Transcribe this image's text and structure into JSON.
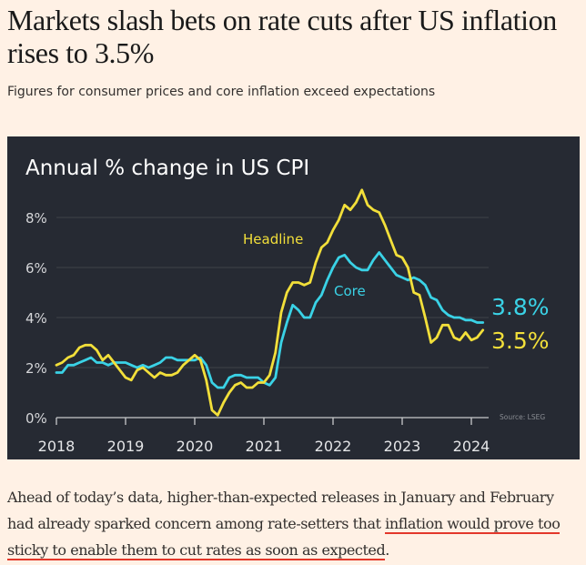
{
  "article": {
    "headline": "Markets slash bets on rate cuts after US inflation rises to 3.5%",
    "standfirst": "Figures for consumer prices and core inflation exceed expectations",
    "body_before_link": "Ahead of today’s data, higher-than-expected releases in January and February had already sparked concern among rate-setters that ",
    "body_link": "inflation would prove too sticky to enable them to cut rates as soon as expected",
    "body_after_link": "."
  },
  "colors": {
    "page_bg": "#fff1e5",
    "chart_bg": "#262a33",
    "headline_series": "#f2df3a",
    "core_series": "#3ad2e6",
    "link_underline": "#e3372a"
  },
  "chart_data": {
    "type": "line",
    "title": "Annual % change in US CPI",
    "source": "Source: LSEG",
    "xlabel": "",
    "ylabel": "",
    "x_start": "2018-01",
    "x_frequency": "monthly",
    "xlim": [
      2018.0,
      2024.25
    ],
    "ylim": [
      0,
      9
    ],
    "x_ticks": [
      2018,
      2019,
      2020,
      2021,
      2022,
      2023,
      2024
    ],
    "x_tick_labels": [
      "2018",
      "2019",
      "2020",
      "2021",
      "2022",
      "2023",
      "2024"
    ],
    "y_ticks": [
      0,
      2,
      4,
      6,
      8
    ],
    "y_tick_labels": [
      "0%",
      "2%",
      "4%",
      "6%",
      "8%"
    ],
    "grid": true,
    "series": [
      {
        "name": "Headline",
        "color": "#f2df3a",
        "end_label": "3.5%",
        "values": [
          2.1,
          2.2,
          2.4,
          2.5,
          2.8,
          2.9,
          2.9,
          2.7,
          2.3,
          2.5,
          2.2,
          1.9,
          1.6,
          1.5,
          1.9,
          2.0,
          1.8,
          1.6,
          1.8,
          1.7,
          1.7,
          1.8,
          2.1,
          2.3,
          2.5,
          2.3,
          1.5,
          0.3,
          0.1,
          0.6,
          1.0,
          1.3,
          1.4,
          1.2,
          1.2,
          1.4,
          1.4,
          1.7,
          2.6,
          4.2,
          5.0,
          5.4,
          5.4,
          5.3,
          5.4,
          6.2,
          6.8,
          7.0,
          7.5,
          7.9,
          8.5,
          8.3,
          8.6,
          9.1,
          8.5,
          8.3,
          8.2,
          7.7,
          7.1,
          6.5,
          6.4,
          6.0,
          5.0,
          4.9,
          4.0,
          3.0,
          3.2,
          3.7,
          3.7,
          3.2,
          3.1,
          3.4,
          3.1,
          3.2,
          3.5
        ]
      },
      {
        "name": "Core",
        "color": "#3ad2e6",
        "end_label": "3.8%",
        "values": [
          1.8,
          1.8,
          2.1,
          2.1,
          2.2,
          2.3,
          2.4,
          2.2,
          2.2,
          2.1,
          2.2,
          2.2,
          2.2,
          2.1,
          2.0,
          2.1,
          2.0,
          2.1,
          2.2,
          2.4,
          2.4,
          2.3,
          2.3,
          2.3,
          2.3,
          2.4,
          2.1,
          1.4,
          1.2,
          1.2,
          1.6,
          1.7,
          1.7,
          1.6,
          1.6,
          1.6,
          1.4,
          1.3,
          1.6,
          3.0,
          3.8,
          4.5,
          4.3,
          4.0,
          4.0,
          4.6,
          4.9,
          5.5,
          6.0,
          6.4,
          6.5,
          6.2,
          6.0,
          5.9,
          5.9,
          6.3,
          6.6,
          6.3,
          6.0,
          5.7,
          5.6,
          5.5,
          5.6,
          5.5,
          5.3,
          4.8,
          4.7,
          4.3,
          4.1,
          4.0,
          4.0,
          3.9,
          3.9,
          3.8,
          3.8
        ]
      }
    ],
    "annotations": [
      {
        "text": "Headline",
        "series": "Headline"
      },
      {
        "text": "Core",
        "series": "Core"
      }
    ]
  }
}
